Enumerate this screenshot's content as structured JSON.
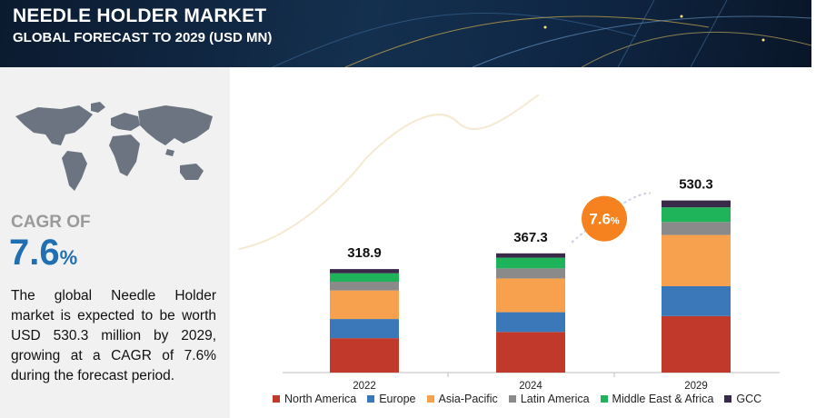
{
  "header": {
    "title": "NEEDLE HOLDER MARKET",
    "subtitle": "GLOBAL FORECAST TO 2029 (USD MN)"
  },
  "sidebar": {
    "cagr_label": "CAGR OF",
    "cagr_number": "7.6",
    "cagr_percent_sign": "%",
    "description": "The global Needle Holder market is expected to be worth USD 530.3 million by 2029, growing at a CAGR of 7.6% during the forecast period."
  },
  "colors": {
    "north_america": "#c0392b",
    "europe": "#3a78b9",
    "asia_pacific": "#f7a14f",
    "latin_america": "#8a8a8a",
    "middle_east_africa": "#1fb35a",
    "gcc": "#3a2a4a",
    "cagr_badge": "#f5821f"
  },
  "chart_data": {
    "type": "bar",
    "stacked": true,
    "categories": [
      "2022",
      "2024",
      "2029"
    ],
    "totals": [
      "318.9",
      "367.3",
      "530.3"
    ],
    "series": [
      {
        "name": "North America",
        "color": "#c0392b",
        "values": [
          106,
          125,
          174
        ]
      },
      {
        "name": "Europe",
        "color": "#3a78b9",
        "values": [
          59,
          61,
          92
        ]
      },
      {
        "name": "Asia-Pacific",
        "color": "#f7a14f",
        "values": [
          88,
          104,
          158
        ]
      },
      {
        "name": "Latin America",
        "color": "#8a8a8a",
        "values": [
          27,
          31,
          40
        ]
      },
      {
        "name": "Middle East & Africa",
        "color": "#1fb35a",
        "values": [
          26,
          33,
          45
        ]
      },
      {
        "name": "GCC",
        "color": "#3a2a4a",
        "values": [
          12.9,
          13.3,
          21.3
        ]
      }
    ],
    "annotation": {
      "label": "7.6",
      "suffix": "%"
    },
    "ylim": [
      0,
      560
    ],
    "legend_position": "bottom"
  }
}
